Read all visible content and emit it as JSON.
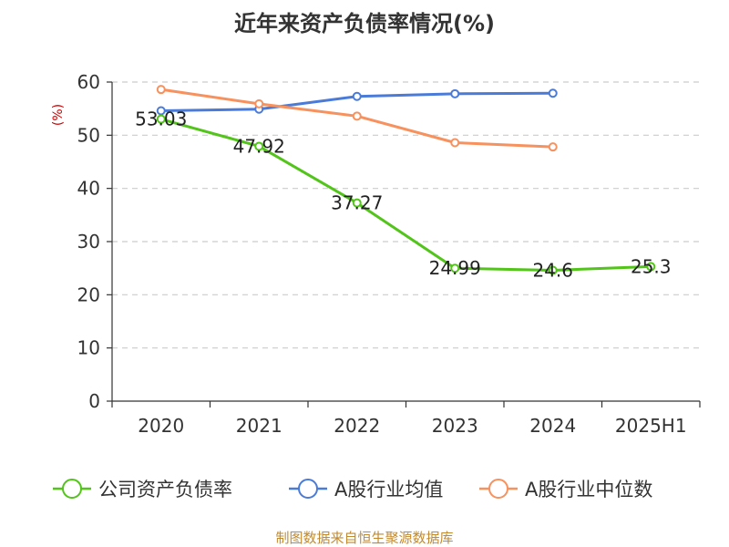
{
  "chart_data": {
    "type": "line",
    "title": "近年来资产负债率情况(%)",
    "ylabel": "(%)",
    "xlabel": "",
    "categories": [
      "2020",
      "2021",
      "2022",
      "2023",
      "2024",
      "2025H1"
    ],
    "ylim": [
      0,
      60
    ],
    "yticks": [
      0,
      10,
      20,
      30,
      40,
      50,
      60
    ],
    "grid": true,
    "legend_position": "bottom",
    "series": [
      {
        "name": "公司资产负债率",
        "color": "#52c41a",
        "values": [
          53.03,
          47.92,
          37.27,
          24.99,
          24.6,
          25.3
        ],
        "labels": [
          "53.03",
          "47.92",
          "37.27",
          "24.99",
          "24.6",
          "25.3"
        ]
      },
      {
        "name": "A股行业均值",
        "color": "#4a7bd8",
        "values": [
          54.6,
          54.9,
          57.3,
          57.8,
          57.9,
          null
        ]
      },
      {
        "name": "A股行业中位数",
        "color": "#f7915e",
        "values": [
          58.6,
          55.9,
          53.6,
          48.6,
          47.8,
          null
        ]
      }
    ]
  },
  "footer": "制图数据来自恒生聚源数据库"
}
